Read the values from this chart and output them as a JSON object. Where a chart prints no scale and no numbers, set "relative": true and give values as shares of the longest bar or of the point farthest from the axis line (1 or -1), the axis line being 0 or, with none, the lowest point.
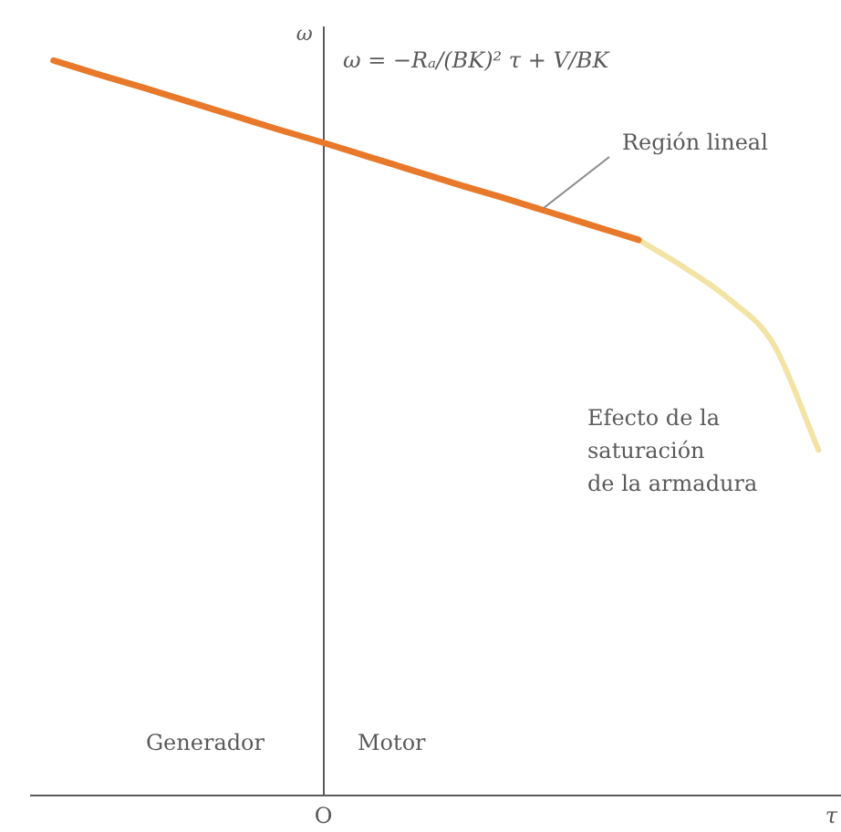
{
  "chart_data": {
    "type": "line",
    "relative": true,
    "categories": [
      null,
      null,
      null,
      null,
      null,
      null,
      null,
      null,
      null,
      null,
      null,
      null,
      null,
      null,
      null,
      null,
      null,
      null
    ],
    "xlabel": "τ",
    "ylabel": "ω",
    "series": [
      {
        "color": "#e8782a",
        "values": [
          1,
          0.981,
          0.963,
          0.944,
          0.925,
          0.906,
          0.888,
          0.869,
          0.85,
          0.831,
          0.813,
          0.794,
          0.775,
          0.756,
          null,
          null,
          null,
          null
        ]
      },
      {
        "color": "#f3e3a4",
        "values": [
          null,
          null,
          null,
          null,
          null,
          null,
          null,
          null,
          null,
          null,
          null,
          null,
          null,
          0.756,
          0.719,
          0.676,
          0.614,
          0.47
        ]
      }
    ],
    "annotations": [
      "ω = −Rₐ/(BK)² τ + V/BK",
      "Región lineal",
      "Efecto de la\nsaturación\nde la armadura",
      "Generador",
      "Motor",
      "O"
    ],
    "grid": false,
    "legend": false,
    "marker": "none"
  }
}
